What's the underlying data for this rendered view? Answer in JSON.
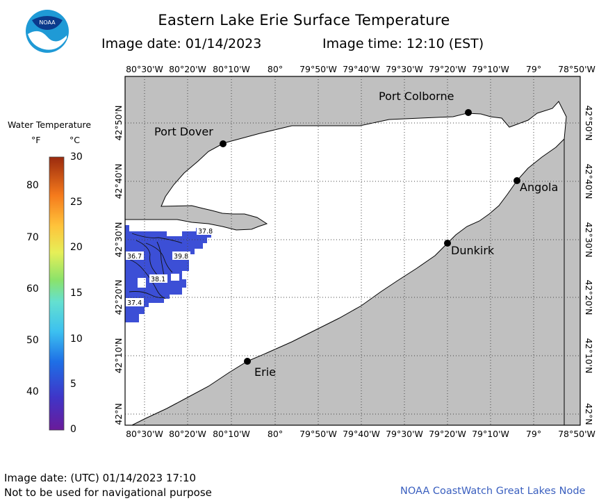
{
  "header": {
    "title": "Eastern Lake Erie Surface Temperature",
    "date_label": "Image date: 01/14/2023",
    "time_label": "Image time: 12:10 (EST)",
    "logo_text": "NOAA"
  },
  "legend": {
    "title": "Water Temperature",
    "unit_f": "°F",
    "unit_c": "°C",
    "f_ticks": [
      "80",
      "70",
      "60",
      "50",
      "40"
    ],
    "c_ticks": [
      "30",
      "25",
      "20",
      "15",
      "10",
      "5",
      "0"
    ],
    "range_c": [
      0,
      30
    ]
  },
  "axes": {
    "lon_labels": [
      "80°30'W",
      "80°20'W",
      "80°10'W",
      "80°",
      "79°50'W",
      "79°40'W",
      "79°30'W",
      "79°20'W",
      "79°10'W",
      "79°",
      "78°50'W"
    ],
    "lat_labels": [
      "42°50'N",
      "42°40'N",
      "42°30'N",
      "42°20'N",
      "42°10'N",
      "42°N"
    ]
  },
  "places": {
    "port_colborne": "Port Colborne",
    "port_dover": "Port Dover",
    "angola": "Angola",
    "dunkirk": "Dunkirk",
    "erie": "Erie"
  },
  "contours": [
    "37.8",
    "36.7",
    "39.8",
    "38.1",
    "37.4"
  ],
  "colors": {
    "land": "#c0c0c0",
    "lake_nodata": "#ffffff",
    "observed_water": "#3c4fd6",
    "grid": "#555555",
    "credit": "#3a5fbf"
  },
  "footer": {
    "utc_date": "Image date: (UTC) 01/14/2023  17:10",
    "disclaimer": "Not to be used for navigational purpose",
    "credit": "NOAA CoastWatch Great Lakes Node"
  }
}
